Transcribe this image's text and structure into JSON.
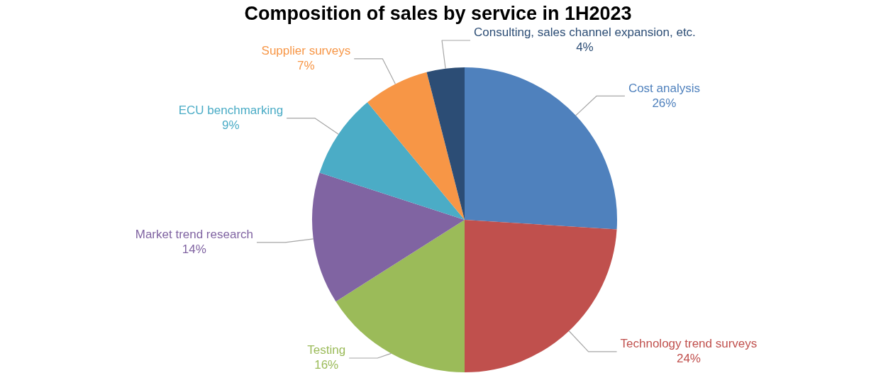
{
  "chart_data": {
    "type": "pie",
    "title": "Composition of sales by service in 1H2023",
    "categories": [
      "Cost analysis",
      "Technology trend surveys",
      "Testing",
      "Market trend research",
      "ECU benchmarking",
      "Supplier surveys",
      "Consulting, sales channel expansion, etc."
    ],
    "values": [
      26,
      24,
      16,
      14,
      9,
      7,
      4
    ],
    "colors": [
      "#4f81bd",
      "#c0504d",
      "#9bbb59",
      "#8064a2",
      "#4bacc6",
      "#f79646",
      "#2c4d75"
    ],
    "value_labels": [
      "26%",
      "24%",
      "16%",
      "14%",
      "9%",
      "7%",
      "4%"
    ],
    "legend": false
  }
}
